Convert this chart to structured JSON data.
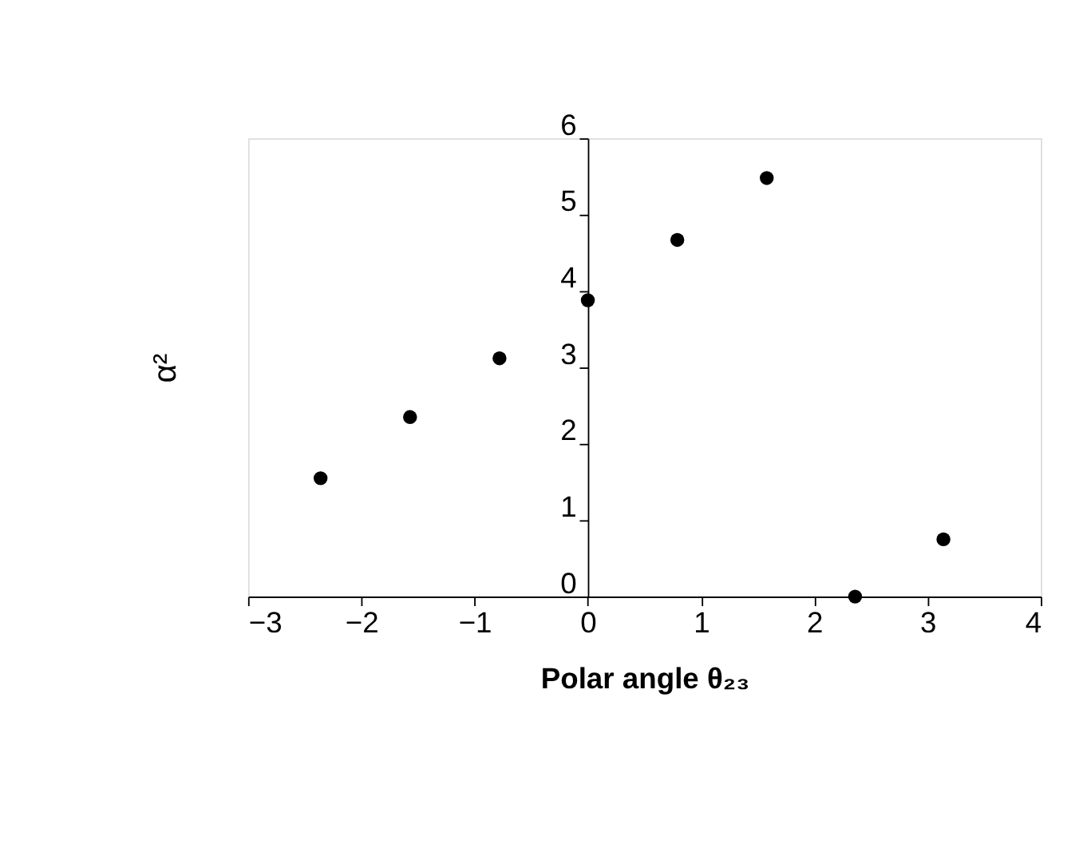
{
  "chart_data": {
    "type": "scatter",
    "xlabel": "Polar angle θ₂₃",
    "ylabel": "α²",
    "x": [
      -2.36,
      -1.57,
      -0.78,
      0,
      0.79,
      1.58,
      2.36,
      3.14
    ],
    "series": [
      {
        "color": "#000000",
        "values": [
          1.55,
          2.35,
          3.12,
          3.88,
          4.67,
          5.48,
          0,
          0.75
        ]
      }
    ],
    "xlim": [
      -3,
      4
    ],
    "xticks": [
      -3,
      -2,
      -1,
      0,
      1,
      2,
      3,
      4
    ],
    "ylim": [
      0,
      6
    ],
    "yticks": [
      0,
      1,
      2,
      3,
      4,
      5,
      6
    ],
    "grid": false,
    "marker": "circle",
    "legend": false
  }
}
